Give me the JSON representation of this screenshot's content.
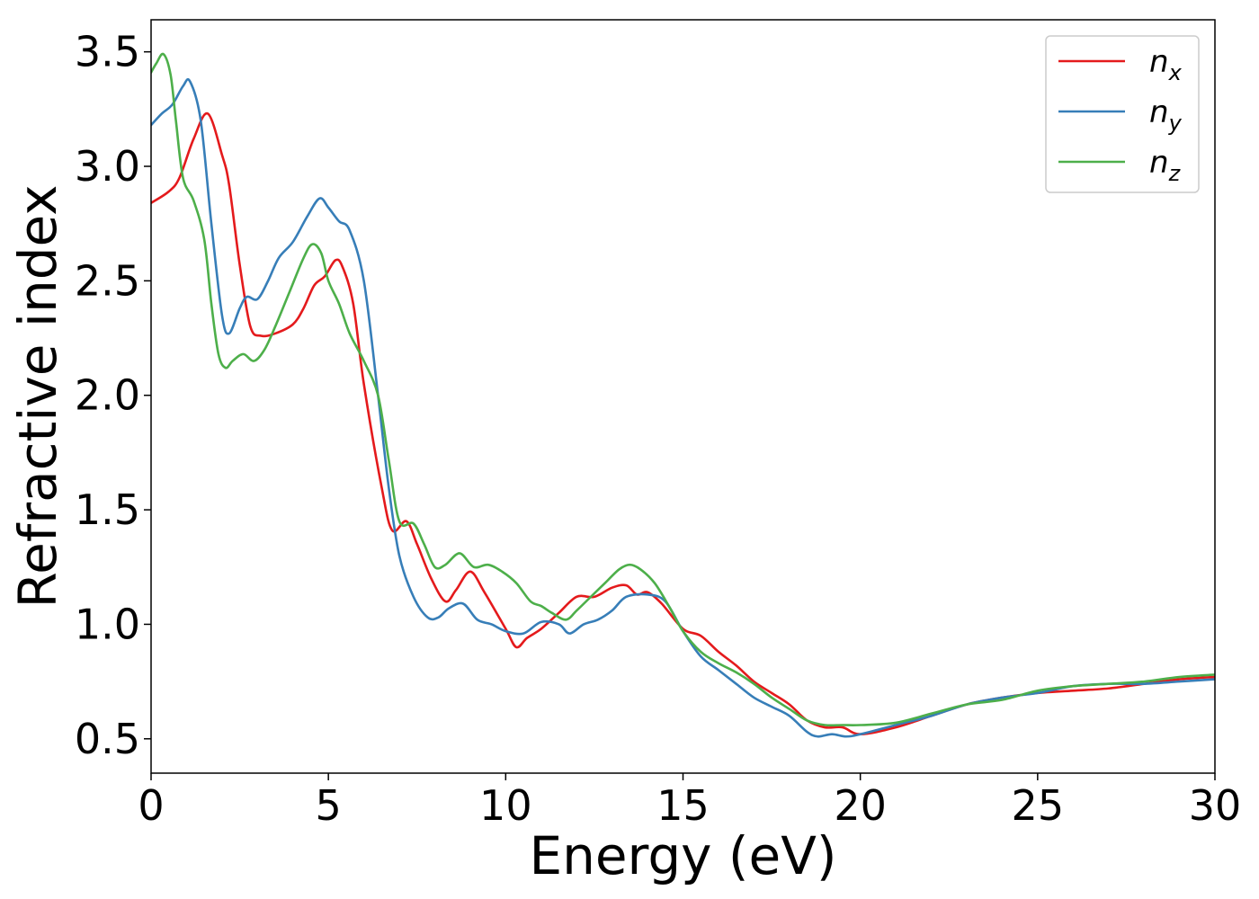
{
  "chart_data": {
    "type": "line",
    "title": "",
    "xlabel": "Energy (eV)",
    "ylabel": "Refractive index",
    "xlim": [
      0,
      30
    ],
    "ylim": [
      0.35,
      3.64
    ],
    "xticks": [
      0,
      5,
      10,
      15,
      20,
      25,
      30
    ],
    "xtick_labels": [
      "0",
      "5",
      "10",
      "15",
      "20",
      "25",
      "30"
    ],
    "yticks": [
      0.5,
      1.0,
      1.5,
      2.0,
      2.5,
      3.0,
      3.5
    ],
    "ytick_labels": [
      "0.5",
      "1.0",
      "1.5",
      "2.0",
      "2.5",
      "3.0",
      "3.5"
    ],
    "grid": false,
    "legend_position": "top-right",
    "series": [
      {
        "name": "n",
        "subscript": "x",
        "color": "#e41a1c",
        "x": [
          0,
          0.5,
          0.8,
          1.2,
          1.6,
          2.0,
          2.2,
          2.5,
          2.8,
          3.1,
          3.5,
          4.0,
          4.3,
          4.6,
          4.9,
          5.2,
          5.4,
          5.7,
          6.0,
          6.5,
          6.8,
          7.2,
          7.5,
          7.9,
          8.3,
          8.6,
          9.0,
          9.4,
          10.0,
          10.3,
          10.6,
          11.0,
          11.5,
          12.0,
          12.5,
          13.0,
          13.4,
          13.7,
          14.0,
          14.4,
          15.0,
          15.5,
          16.0,
          16.5,
          17.0,
          17.5,
          18.0,
          18.5,
          19.0,
          19.5,
          20.0,
          21.0,
          22.0,
          23.0,
          24.0,
          25.0,
          26.0,
          27.0,
          28.0,
          29.0,
          30.0
        ],
        "y": [
          2.84,
          2.89,
          2.95,
          3.12,
          3.23,
          3.05,
          2.92,
          2.57,
          2.3,
          2.26,
          2.27,
          2.31,
          2.38,
          2.48,
          2.52,
          2.59,
          2.56,
          2.4,
          2.05,
          1.6,
          1.41,
          1.45,
          1.35,
          1.2,
          1.1,
          1.15,
          1.23,
          1.14,
          0.98,
          0.9,
          0.94,
          0.98,
          1.05,
          1.12,
          1.12,
          1.16,
          1.17,
          1.13,
          1.14,
          1.09,
          0.98,
          0.95,
          0.88,
          0.82,
          0.75,
          0.7,
          0.65,
          0.58,
          0.55,
          0.55,
          0.52,
          0.55,
          0.6,
          0.65,
          0.68,
          0.7,
          0.71,
          0.72,
          0.74,
          0.76,
          0.77
        ]
      },
      {
        "name": "n",
        "subscript": "y",
        "color": "#377eb8",
        "x": [
          0,
          0.3,
          0.6,
          0.9,
          1.1,
          1.4,
          1.7,
          2.0,
          2.2,
          2.5,
          2.7,
          3.0,
          3.3,
          3.6,
          4.0,
          4.4,
          4.75,
          5.0,
          5.3,
          5.6,
          6.0,
          6.4,
          6.7,
          7.0,
          7.4,
          7.8,
          8.1,
          8.4,
          8.8,
          9.2,
          9.6,
          10.0,
          10.5,
          11.0,
          11.5,
          11.8,
          12.2,
          12.6,
          13.0,
          13.4,
          14.0,
          14.5,
          15.0,
          15.5,
          16.0,
          16.5,
          17.0,
          17.5,
          18.0,
          18.5,
          18.8,
          19.2,
          19.6,
          20.0,
          21.0,
          22.0,
          23.0,
          24.0,
          25.0,
          26.0,
          27.0,
          28.0,
          29.0,
          30.0
        ],
        "y": [
          3.18,
          3.23,
          3.27,
          3.35,
          3.37,
          3.2,
          2.75,
          2.35,
          2.27,
          2.38,
          2.43,
          2.42,
          2.5,
          2.6,
          2.67,
          2.78,
          2.86,
          2.82,
          2.76,
          2.72,
          2.5,
          2.0,
          1.6,
          1.3,
          1.12,
          1.03,
          1.03,
          1.07,
          1.09,
          1.02,
          1.0,
          0.97,
          0.96,
          1.01,
          1.0,
          0.96,
          1.0,
          1.02,
          1.06,
          1.12,
          1.13,
          1.1,
          0.97,
          0.86,
          0.8,
          0.74,
          0.68,
          0.64,
          0.6,
          0.53,
          0.51,
          0.52,
          0.51,
          0.52,
          0.56,
          0.6,
          0.65,
          0.68,
          0.7,
          0.73,
          0.74,
          0.74,
          0.75,
          0.76
        ]
      },
      {
        "name": "n",
        "subscript": "z",
        "color": "#4daf4a",
        "x": [
          0,
          0.15,
          0.35,
          0.55,
          0.7,
          0.9,
          1.2,
          1.5,
          1.7,
          1.9,
          2.1,
          2.3,
          2.6,
          2.9,
          3.2,
          3.5,
          3.9,
          4.3,
          4.55,
          4.8,
          5.0,
          5.3,
          5.6,
          6.0,
          6.4,
          6.7,
          7.0,
          7.4,
          7.7,
          8.0,
          8.3,
          8.7,
          9.1,
          9.5,
          9.9,
          10.3,
          10.7,
          11.0,
          11.3,
          11.7,
          12.0,
          12.4,
          12.8,
          13.2,
          13.5,
          13.8,
          14.2,
          14.6,
          15.0,
          15.5,
          16.0,
          16.5,
          17.0,
          17.5,
          18.0,
          18.5,
          19.0,
          19.5,
          20.0,
          21.0,
          22.0,
          23.0,
          24.0,
          25.0,
          26.0,
          27.0,
          28.0,
          29.0,
          30.0
        ],
        "y": [
          3.41,
          3.45,
          3.49,
          3.4,
          3.2,
          2.95,
          2.85,
          2.68,
          2.4,
          2.18,
          2.12,
          2.15,
          2.18,
          2.15,
          2.2,
          2.3,
          2.45,
          2.6,
          2.66,
          2.62,
          2.5,
          2.4,
          2.27,
          2.15,
          2.0,
          1.72,
          1.45,
          1.44,
          1.35,
          1.25,
          1.26,
          1.31,
          1.25,
          1.26,
          1.23,
          1.18,
          1.1,
          1.08,
          1.05,
          1.02,
          1.06,
          1.12,
          1.18,
          1.24,
          1.26,
          1.24,
          1.18,
          1.08,
          0.97,
          0.88,
          0.83,
          0.79,
          0.74,
          0.68,
          0.63,
          0.58,
          0.56,
          0.56,
          0.56,
          0.57,
          0.61,
          0.65,
          0.67,
          0.71,
          0.73,
          0.74,
          0.75,
          0.77,
          0.78
        ]
      }
    ]
  }
}
